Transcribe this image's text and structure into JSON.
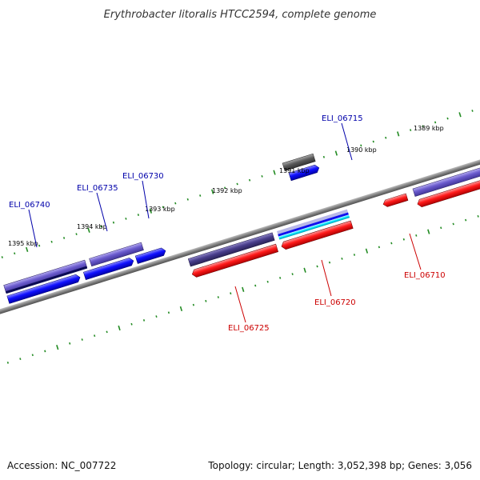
{
  "title": "Erythrobacter litoralis HTCC2594, complete genome",
  "footer": {
    "accession": "Accession: NC_007722",
    "summary": "Topology: circular; Length: 3,052,398 bp; Genes: 3,056"
  },
  "scale_labels": [
    "1389 kbp",
    "1390 kbp",
    "1391 kbp",
    "1392 kbp",
    "1393 kbp",
    "1394 kbp",
    "1395 kbp"
  ],
  "gene_labels": [
    {
      "id": "ELI_06715",
      "strand": "plus"
    },
    {
      "id": "ELI_06730",
      "strand": "plus"
    },
    {
      "id": "ELI_06735",
      "strand": "plus"
    },
    {
      "id": "ELI_06740",
      "strand": "plus"
    },
    {
      "id": "ELI_06710",
      "strand": "minus"
    },
    {
      "id": "ELI_06720",
      "strand": "minus"
    },
    {
      "id": "ELI_06725",
      "strand": "minus"
    }
  ],
  "colors": {
    "plus_label": "#0000aa",
    "minus_label": "#cc0000",
    "tick": "#228b22",
    "backbone": "#808080",
    "red": "#ff0000",
    "blue": "#0000ff",
    "slate": "#483d8b",
    "lavender": "#6a5acd",
    "grey": "#555555",
    "cyan": "#00ffff"
  }
}
